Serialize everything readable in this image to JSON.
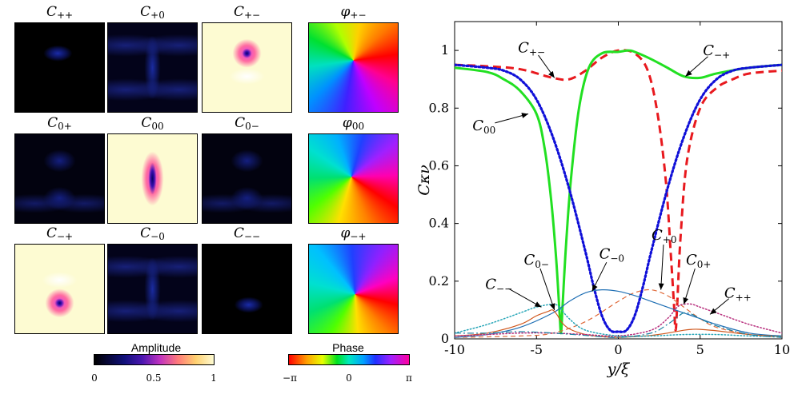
{
  "panels": [
    {
      "id": "Cpp",
      "base": "C",
      "sub": "++",
      "style": "black",
      "blob": "top-small"
    },
    {
      "id": "Cp0",
      "base": "C",
      "sub": "+0",
      "style": "navy",
      "blob": "x"
    },
    {
      "id": "Cpm",
      "base": "C",
      "sub": "+−",
      "style": "cream",
      "blob": "vortex-top"
    },
    {
      "id": "phipm",
      "base": "φ",
      "sub": "+−",
      "style": "phase",
      "blob": "phase1"
    },
    {
      "id": "C0p",
      "base": "C",
      "sub": "0+",
      "style": "navy",
      "blob": "x-faint"
    },
    {
      "id": "C00",
      "base": "C",
      "sub": "00",
      "style": "cream",
      "blob": "vortex-center"
    },
    {
      "id": "C0m",
      "base": "C",
      "sub": "0−",
      "style": "navy",
      "blob": "x-faint"
    },
    {
      "id": "phi00",
      "base": "φ",
      "sub": "00",
      "style": "phase",
      "blob": "phase2"
    },
    {
      "id": "Cmp",
      "base": "C",
      "sub": "−+",
      "style": "cream",
      "blob": "vortex-bottom"
    },
    {
      "id": "Cm0",
      "base": "C",
      "sub": "−0",
      "style": "navy",
      "blob": "x"
    },
    {
      "id": "Cmm",
      "base": "C",
      "sub": "−−",
      "style": "black",
      "blob": "bottom-small"
    },
    {
      "id": "phimp",
      "base": "φ",
      "sub": "−+",
      "style": "phase",
      "blob": "phase3"
    }
  ],
  "colorbars": {
    "amplitude": {
      "title": "Amplitude",
      "ticks": [
        "0",
        "0.5",
        "1"
      ]
    },
    "phase": {
      "title": "Phase",
      "ticks": [
        "−π",
        "0",
        "π"
      ]
    }
  },
  "chart_data": {
    "type": "line",
    "xlabel": "y/ξ",
    "ylabel": "Cκν",
    "xlim": [
      -10,
      10
    ],
    "ylim": [
      0,
      1.1
    ],
    "xticks": [
      "-10",
      "-5",
      "0",
      "5",
      "10"
    ],
    "yticks": [
      "0",
      "0.2",
      "0.4",
      "0.6",
      "0.8",
      "1"
    ],
    "grid": false,
    "series": [
      {
        "name": "C+−",
        "color": "#e8191e",
        "dash": "dashed",
        "width": 3,
        "x": [
          -10,
          -8,
          -6,
          -4,
          -3,
          -2,
          -1,
          0,
          1,
          1.8,
          2.4,
          2.9,
          3.2,
          3.4,
          3.5,
          3.6,
          3.8,
          4.2,
          5,
          6,
          7,
          8,
          10
        ],
        "y": [
          0.95,
          0.945,
          0.935,
          0.905,
          0.9,
          0.93,
          0.975,
          1.0,
          0.99,
          0.93,
          0.78,
          0.55,
          0.3,
          0.12,
          0.03,
          0.12,
          0.35,
          0.62,
          0.8,
          0.87,
          0.9,
          0.92,
          0.93
        ]
      },
      {
        "name": "C−+",
        "color": "#22e022",
        "dash": "solid",
        "width": 3,
        "x": [
          -10,
          -8,
          -7,
          -6,
          -5,
          -4.5,
          -4.1,
          -3.8,
          -3.6,
          -3.5,
          -3.4,
          -3.2,
          -2.9,
          -2.4,
          -1.8,
          -1,
          0,
          0.6,
          1,
          2,
          3,
          4,
          5,
          6,
          8,
          10
        ],
        "y": [
          0.94,
          0.925,
          0.9,
          0.86,
          0.78,
          0.66,
          0.48,
          0.28,
          0.1,
          0.02,
          0.12,
          0.32,
          0.55,
          0.8,
          0.94,
          0.99,
          0.995,
          1.0,
          0.995,
          0.97,
          0.94,
          0.91,
          0.905,
          0.92,
          0.94,
          0.95
        ]
      },
      {
        "name": "C00",
        "color": "#1010d8",
        "dash": "dotted",
        "width": 3.2,
        "x": [
          -10,
          -8,
          -7,
          -6,
          -5,
          -4,
          -3,
          -2,
          -1.5,
          -1,
          -0.5,
          0,
          0.5,
          1,
          1.5,
          2,
          3,
          4,
          5,
          6,
          7,
          8,
          10
        ],
        "y": [
          0.95,
          0.94,
          0.93,
          0.9,
          0.83,
          0.7,
          0.52,
          0.3,
          0.18,
          0.08,
          0.03,
          0.025,
          0.03,
          0.08,
          0.18,
          0.3,
          0.52,
          0.7,
          0.83,
          0.9,
          0.93,
          0.94,
          0.95
        ]
      },
      {
        "name": "C+0",
        "color": "#e06a3a",
        "dash": "dashed",
        "width": 1.2,
        "x": [
          -10,
          -6,
          -4,
          -2,
          0,
          1,
          2,
          3,
          4,
          5,
          6,
          8,
          10
        ],
        "y": [
          0.005,
          0.01,
          0.02,
          0.06,
          0.13,
          0.16,
          0.17,
          0.15,
          0.11,
          0.07,
          0.04,
          0.015,
          0.005
        ]
      },
      {
        "name": "C−0",
        "color": "#1f6fb4",
        "dash": "solid",
        "width": 1.2,
        "x": [
          -10,
          -8,
          -6,
          -4,
          -3,
          -2,
          -1,
          0,
          1,
          2,
          3,
          4,
          5,
          6,
          8,
          10
        ],
        "y": [
          0.005,
          0.015,
          0.04,
          0.09,
          0.13,
          0.16,
          0.17,
          0.165,
          0.15,
          0.13,
          0.11,
          0.09,
          0.07,
          0.05,
          0.02,
          0.01
        ]
      },
      {
        "name": "C0−",
        "color": "#d0581e",
        "dash": "solid",
        "width": 1.2,
        "x": [
          -10,
          -8,
          -6,
          -5,
          -4.3,
          -4,
          -3.7,
          -3.5,
          -3,
          -2,
          -1,
          0,
          1,
          2,
          3,
          4,
          4.5,
          5,
          6,
          8,
          10
        ],
        "y": [
          0.01,
          0.02,
          0.05,
          0.08,
          0.095,
          0.1,
          0.08,
          0.06,
          0.035,
          0.015,
          0.008,
          0.005,
          0.008,
          0.012,
          0.02,
          0.03,
          0.033,
          0.033,
          0.028,
          0.015,
          0.008
        ]
      },
      {
        "name": "C0+",
        "color": "#b8307e",
        "dash": "dotted",
        "width": 1.5,
        "x": [
          -10,
          -8,
          -6,
          -4,
          -2,
          0,
          2,
          3,
          3.6,
          4,
          4.5,
          5,
          6,
          8,
          10
        ],
        "y": [
          0.01,
          0.015,
          0.02,
          0.02,
          0.015,
          0.01,
          0.03,
          0.07,
          0.11,
          0.12,
          0.12,
          0.11,
          0.09,
          0.05,
          0.02
        ]
      },
      {
        "name": "C−−",
        "color": "#27a6b8",
        "dash": "dotted",
        "width": 1.5,
        "x": [
          -10,
          -8,
          -6,
          -5,
          -4,
          -3.6,
          -3,
          -2,
          0,
          2,
          4,
          6,
          8,
          10
        ],
        "y": [
          0.02,
          0.05,
          0.09,
          0.11,
          0.12,
          0.11,
          0.07,
          0.03,
          0.01,
          0.01,
          0.015,
          0.015,
          0.01,
          0.008
        ]
      },
      {
        "name": "C++",
        "color": "#1a7fa0",
        "dash": "dashdot",
        "width": 1.2,
        "x": [
          -10,
          -8,
          -6,
          -4,
          -2,
          0,
          2,
          3,
          3.6,
          4,
          4.5,
          5,
          6,
          8,
          10
        ],
        "y": [
          0.02,
          0.02,
          0.025,
          0.02,
          0.012,
          0.005,
          0.02,
          0.05,
          0.075,
          0.09,
          0.085,
          0.07,
          0.045,
          0.015,
          0.005
        ]
      }
    ],
    "annotations": [
      {
        "label": "C+−",
        "base": "C",
        "sub": "+−",
        "tx": -5.3,
        "ty": 1.01,
        "ax": -3.9,
        "ay": 0.905
      },
      {
        "label": "C−+",
        "base": "C",
        "sub": "−+",
        "tx": 6.0,
        "ty": 1.0,
        "ax": 4.1,
        "ay": 0.91
      },
      {
        "label": "C00",
        "base": "C",
        "sub": "00",
        "tx": -8.2,
        "ty": 0.74,
        "ax": -5.5,
        "ay": 0.78
      },
      {
        "label": "C+0",
        "base": "C",
        "sub": "+0",
        "tx": 2.8,
        "ty": 0.36,
        "ax": 2.6,
        "ay": 0.17
      },
      {
        "label": "C−0",
        "base": "C",
        "sub": "−0",
        "tx": -0.4,
        "ty": 0.295,
        "ax": -1.6,
        "ay": 0.165
      },
      {
        "label": "C0−",
        "base": "C",
        "sub": "0−",
        "tx": -5.0,
        "ty": 0.275,
        "ax": -3.9,
        "ay": 0.1
      },
      {
        "label": "C0+",
        "base": "C",
        "sub": "0+",
        "tx": 4.9,
        "ty": 0.275,
        "ax": 4.0,
        "ay": 0.12
      },
      {
        "label": "C−−",
        "base": "C",
        "sub": "−−",
        "tx": -7.3,
        "ty": 0.19,
        "ax": -4.7,
        "ay": 0.11
      },
      {
        "label": "C++",
        "base": "C",
        "sub": "++",
        "tx": 7.3,
        "ty": 0.16,
        "ax": 5.6,
        "ay": 0.085
      }
    ]
  }
}
